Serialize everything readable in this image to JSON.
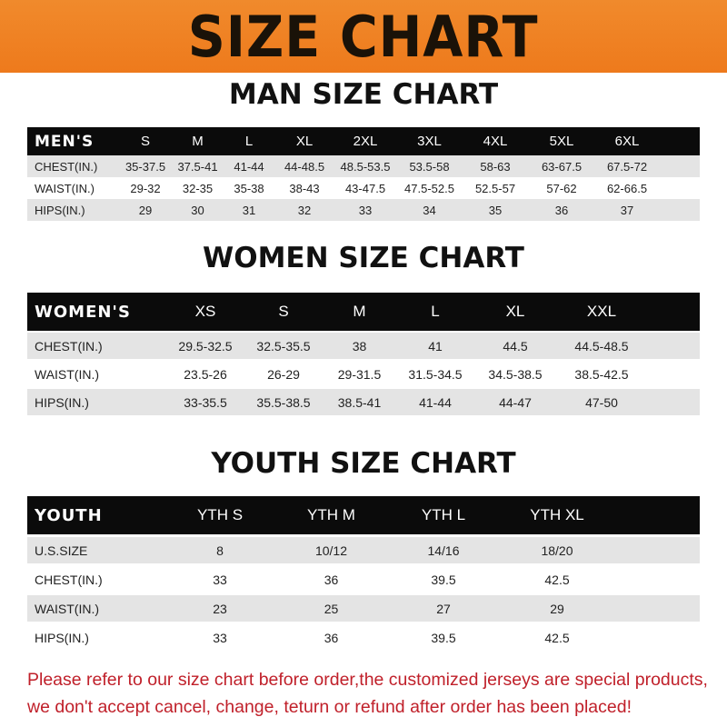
{
  "title": "SIZE CHART",
  "colors": {
    "banner": "#ee7a1c",
    "header_row": "#0b0b0b",
    "stripe": "#e4e4e4",
    "note": "#c0202a"
  },
  "men": {
    "title": "MAN SIZE CHART",
    "header": "MEN'S",
    "sizes": [
      "S",
      "M",
      "L",
      "XL",
      "2XL",
      "3XL",
      "4XL",
      "5XL",
      "6XL"
    ],
    "rows": [
      {
        "label": "CHEST(IN.)",
        "values": [
          "35-37.5",
          "37.5-41",
          "41-44",
          "44-48.5",
          "48.5-53.5",
          "53.5-58",
          "58-63",
          "63-67.5",
          "67.5-72"
        ]
      },
      {
        "label": "WAIST(IN.)",
        "values": [
          "29-32",
          "32-35",
          "35-38",
          "38-43",
          "43-47.5",
          "47.5-52.5",
          "52.5-57",
          "57-62",
          "62-66.5"
        ]
      },
      {
        "label": "HIPS(IN.)",
        "values": [
          "29",
          "30",
          "31",
          "32",
          "33",
          "34",
          "35",
          "36",
          "37"
        ]
      }
    ]
  },
  "women": {
    "title": "WOMEN SIZE CHART",
    "header": "WOMEN'S",
    "sizes": [
      "XS",
      "S",
      "M",
      "L",
      "XL",
      "XXL"
    ],
    "rows": [
      {
        "label": "CHEST(IN.)",
        "values": [
          "29.5-32.5",
          "32.5-35.5",
          "38",
          "41",
          "44.5",
          "44.5-48.5"
        ]
      },
      {
        "label": "WAIST(IN.)",
        "values": [
          "23.5-26",
          "26-29",
          "29-31.5",
          "31.5-34.5",
          "34.5-38.5",
          "38.5-42.5"
        ]
      },
      {
        "label": "HIPS(IN.)",
        "values": [
          "33-35.5",
          "35.5-38.5",
          "38.5-41",
          "41-44",
          "44-47",
          "47-50"
        ]
      }
    ]
  },
  "youth": {
    "title": "YOUTH SIZE CHART",
    "header": "YOUTH",
    "sizes": [
      "YTH S",
      "YTH M",
      "YTH L",
      "YTH XL"
    ],
    "rows": [
      {
        "label": "U.S.SIZE",
        "values": [
          "8",
          "10/12",
          "14/16",
          "18/20"
        ]
      },
      {
        "label": "CHEST(IN.)",
        "values": [
          "33",
          "36",
          "39.5",
          "42.5"
        ]
      },
      {
        "label": "WAIST(IN.)",
        "values": [
          "23",
          "25",
          "27",
          "29"
        ]
      },
      {
        "label": "HIPS(IN.)",
        "values": [
          "33",
          "36",
          "39.5",
          "42.5"
        ]
      }
    ]
  },
  "note": [
    "Please refer to our size chart before order,the customized jerseys are special products,",
    "we don't accept cancel, change, teturn or refund after order has been placed!"
  ]
}
